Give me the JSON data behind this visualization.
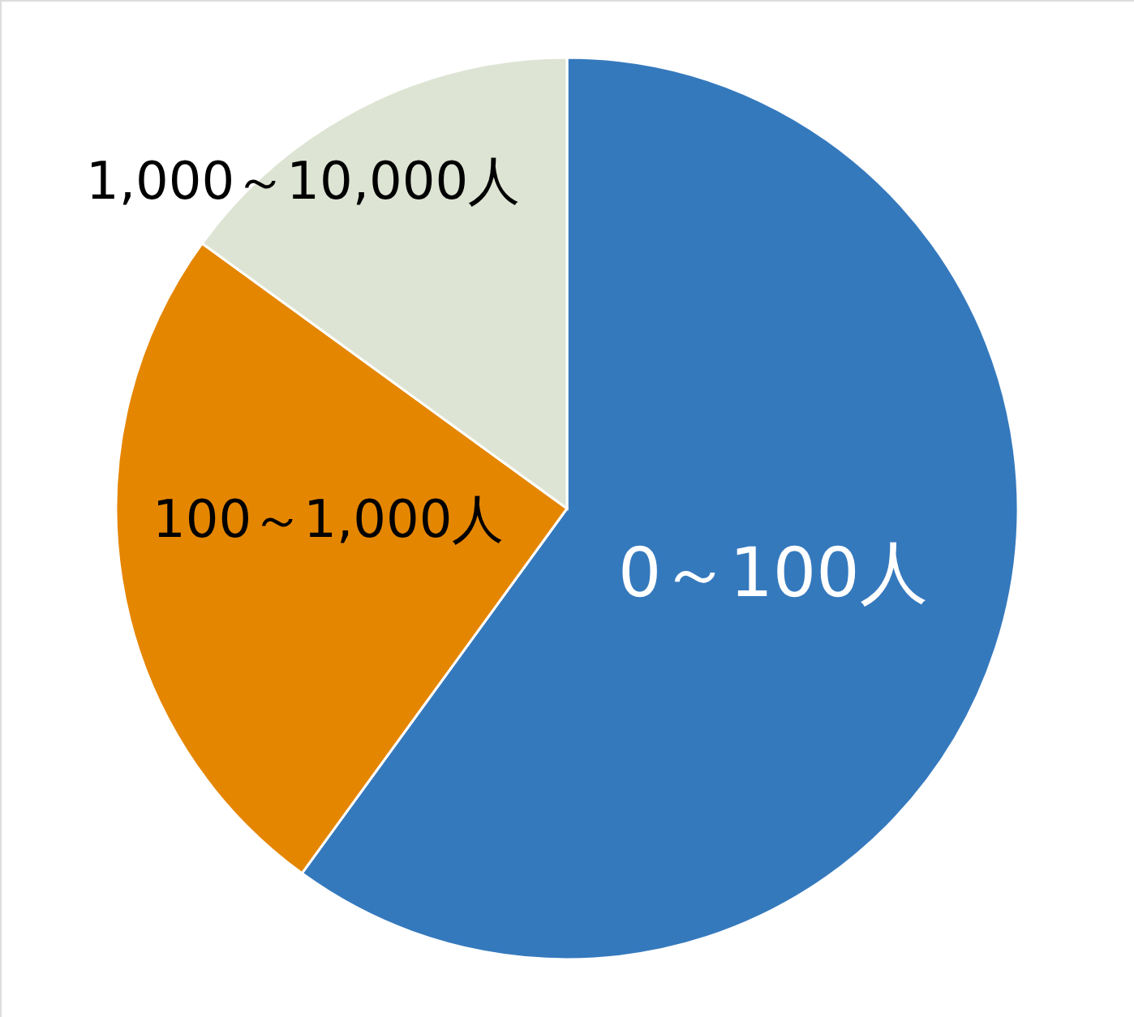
{
  "chart_data": {
    "type": "pie",
    "categories": [
      "0～100人",
      "100～1,000人",
      "1,000～10,000人"
    ],
    "values": [
      60,
      25,
      15
    ],
    "colors": [
      "#3579bd",
      "#e58600",
      "#dde4d3"
    ]
  }
}
